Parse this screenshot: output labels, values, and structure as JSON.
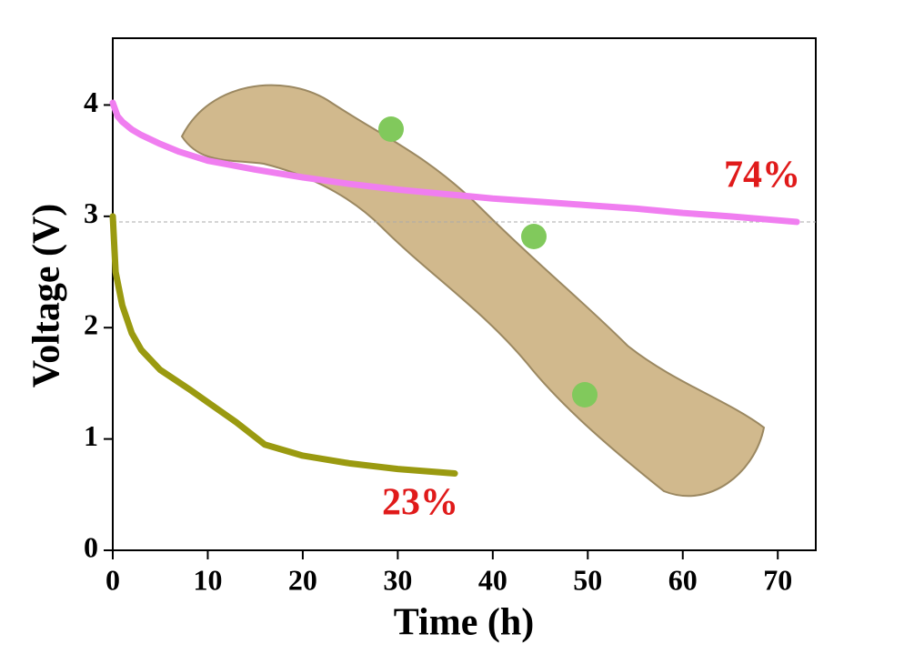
{
  "chart_data": {
    "type": "line",
    "xlabel": "Time (h)",
    "ylabel": "Voltage (V)",
    "xlim": [
      0,
      74
    ],
    "ylim": [
      0,
      4.6
    ],
    "xticks": [
      0,
      10,
      20,
      30,
      40,
      50,
      60,
      70
    ],
    "yticks": [
      0,
      1,
      2,
      3,
      4
    ],
    "reference_line": 2.95,
    "series": [
      {
        "color": "#f07ef0",
        "x": [
          0,
          0.5,
          1,
          2,
          3,
          5,
          7,
          10,
          15,
          20,
          25,
          30,
          35,
          40,
          45,
          50,
          55,
          60,
          65,
          72
        ],
        "values": [
          4.02,
          3.9,
          3.85,
          3.78,
          3.73,
          3.65,
          3.58,
          3.5,
          3.42,
          3.35,
          3.29,
          3.24,
          3.2,
          3.16,
          3.13,
          3.1,
          3.07,
          3.03,
          3.0,
          2.95
        ]
      },
      {
        "color": "#9a9a10",
        "x": [
          0,
          0.3,
          1,
          2,
          3,
          5,
          8,
          10,
          13,
          16,
          20,
          25,
          30,
          36
        ],
        "values": [
          3.0,
          2.5,
          2.2,
          1.95,
          1.8,
          1.62,
          1.45,
          1.33,
          1.15,
          0.95,
          0.85,
          0.78,
          0.73,
          0.69
        ]
      }
    ],
    "annotations": [
      "74%",
      "23%"
    ]
  }
}
